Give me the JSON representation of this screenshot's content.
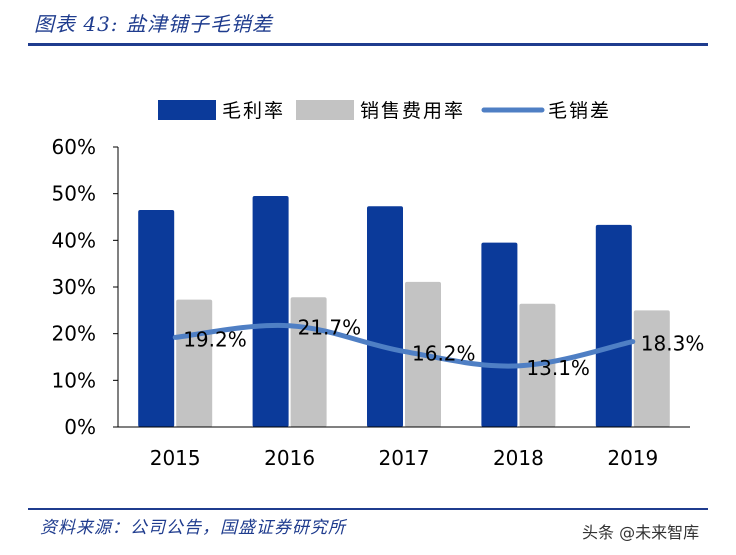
{
  "header": {
    "title": "图表 43:  盐津铺子毛销差"
  },
  "footer": {
    "source": "资料来源：公司公告，国盛证券研究所",
    "watermark": "头条 @未来智库"
  },
  "colors": {
    "brand": "#1f3c8e",
    "gross_margin": "#0b3a9a",
    "selling_expense": "#c3c3c3",
    "spread": "#4f7fc4"
  },
  "chart_data": {
    "type": "bar",
    "categories": [
      "2015",
      "2016",
      "2017",
      "2018",
      "2019"
    ],
    "series": [
      {
        "name": "毛利率",
        "type": "bar",
        "values": [
          46.5,
          49.5,
          47.3,
          39.5,
          43.3
        ]
      },
      {
        "name": "销售费用率",
        "type": "bar",
        "values": [
          27.3,
          27.8,
          31.1,
          26.4,
          25.0
        ]
      },
      {
        "name": "毛销差",
        "type": "line",
        "values": [
          19.2,
          21.7,
          16.2,
          13.1,
          18.3
        ],
        "labels": [
          "19.2%",
          "21.7%",
          "16.2%",
          "13.1%",
          "18.3%"
        ]
      }
    ],
    "ylim": [
      0,
      60
    ],
    "yticks": [
      "0%",
      "10%",
      "20%",
      "30%",
      "40%",
      "50%",
      "60%"
    ],
    "legend": "top",
    "grid": false
  }
}
